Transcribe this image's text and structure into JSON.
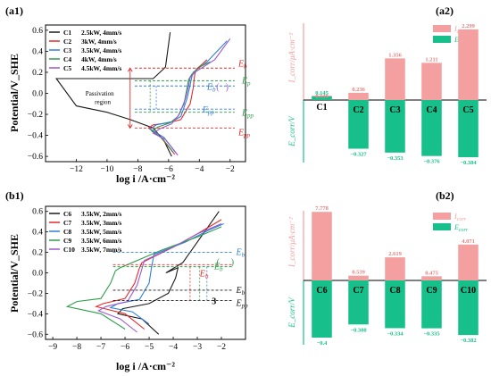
{
  "chart_data": [
    {
      "panel": "(a1)",
      "type": "line",
      "xlabel": "log i /A·cm⁻²",
      "ylabel": "Potential/V_SHE",
      "xlim": [
        -14,
        -1
      ],
      "ylim": [
        -0.65,
        0.65
      ],
      "xticks": [
        "−12",
        "−10",
        "−8",
        "−6",
        "−4",
        "−2"
      ],
      "xtick_values": [
        -12,
        -10,
        -8,
        -6,
        -4,
        -2
      ],
      "yticks": [
        "−0.6",
        "−0.4",
        "−0.2",
        "0.0",
        "0.2",
        "0.4",
        "0.6"
      ],
      "ytick_values": [
        -0.6,
        -0.4,
        -0.2,
        0.0,
        0.2,
        0.4,
        0.6
      ],
      "legend_position": "top-left",
      "series": [
        {
          "name": "C1",
          "detail": "2.5kW, 4mm/s",
          "color": "#1a1a1a",
          "x": [
            -5.8,
            -6.3,
            -7.0,
            -8.5,
            -10,
            -12,
            -13.3,
            -12,
            -9,
            -7,
            -6.2,
            -5.9
          ],
          "y": [
            -0.6,
            -0.45,
            -0.33,
            -0.25,
            -0.18,
            -0.12,
            0.14,
            0.14,
            0.14,
            0.14,
            0.25,
            0.58
          ]
        },
        {
          "name": "C2",
          "detail": "3kW, 4mm/s",
          "color": "#e32a2a",
          "x": [
            -5.6,
            -6.5,
            -7.3,
            -7.0,
            -6.0,
            -5.2,
            -4.6,
            -4.4,
            -4.3,
            -4.2,
            -3.8,
            -3.5
          ],
          "y": [
            -0.58,
            -0.42,
            -0.33,
            -0.3,
            -0.28,
            -0.25,
            -0.1,
            0.05,
            0.18,
            0.23,
            0.28,
            0.32
          ]
        },
        {
          "name": "C3",
          "detail": "3.5kW, 4mm/s",
          "color": "#2f7fd8",
          "x": [
            -5.5,
            -6.3,
            -7.2,
            -6.8,
            -5.8,
            -5.2,
            -4.8,
            -4.6,
            -4.5,
            -4.4,
            -3.5,
            -2.2
          ],
          "y": [
            -0.57,
            -0.42,
            -0.34,
            -0.3,
            -0.27,
            -0.22,
            -0.05,
            0.08,
            0.15,
            0.2,
            0.3,
            0.5
          ]
        },
        {
          "name": "C4",
          "detail": "4kW, 4mm/s",
          "color": "#2e9e4a",
          "x": [
            -5.7,
            -6.4,
            -7.1,
            -6.7,
            -5.9,
            -5.4,
            -5.0,
            -4.8,
            -4.7,
            -4.5,
            -4.0,
            -3.3
          ],
          "y": [
            -0.56,
            -0.43,
            -0.36,
            -0.32,
            -0.28,
            -0.22,
            -0.1,
            0.05,
            0.13,
            0.18,
            0.25,
            0.3
          ]
        },
        {
          "name": "C5",
          "detail": "4.5kW, 4mm/s",
          "color": "#9b59d0",
          "x": [
            -5.4,
            -6.2,
            -7.0,
            -6.6,
            -5.8,
            -5.3,
            -4.9,
            -4.7,
            -4.6,
            -4.3,
            -3.0,
            -2.0
          ],
          "y": [
            -0.59,
            -0.44,
            -0.38,
            -0.34,
            -0.29,
            -0.2,
            -0.05,
            0.07,
            0.15,
            0.2,
            0.32,
            0.52
          ]
        }
      ],
      "annotations": {
        "eb": "E",
        "eb_sub": "b",
        "epp": "E",
        "epp_sub": "pp",
        "paren_open": "(",
        "paren_close": ")",
        "passivation_line1": "Passivation",
        "passivation_line2": "region"
      },
      "marker_levels": {
        "eb": 0.24,
        "epp": -0.33,
        "ep_green": 0.12,
        "epp_green": -0.18,
        "eb_blue": 0.07,
        "epp_blue": -0.15
      }
    },
    {
      "panel": "(a2)",
      "type": "bar",
      "categories": [
        "C1",
        "C2",
        "C3",
        "C4",
        "C5"
      ],
      "series": [
        {
          "name": "I_corr",
          "unit": "μA·cm⁻²",
          "color": "#f4a0a0",
          "values": [
            0.139,
            0.236,
            1.356,
            1.211,
            2.299
          ],
          "labels": [
            "0.139",
            "0.236",
            "1.356",
            "1.211",
            "2.299"
          ]
        },
        {
          "name": "E_corr",
          "unit": "V",
          "color": "#17c08a",
          "values": [
            0.145,
            -0.327,
            -0.353,
            -0.376,
            -0.384
          ],
          "labels": [
            "0.145",
            "−0.327",
            "−0.353",
            "−0.376",
            "−0.384"
          ]
        }
      ],
      "y_upper_label": "I_corr/μA·cm⁻²",
      "y_lower_label": "E_corr/V",
      "legend_position": "top-right"
    },
    {
      "panel": "(b1)",
      "type": "line",
      "xlabel": "log i /A·cm⁻²",
      "ylabel": "Potential/V_SHE",
      "xlim": [
        -9.3,
        -1
      ],
      "ylim": [
        -0.65,
        0.65
      ],
      "xticks": [
        "−9",
        "−8",
        "−7",
        "−6",
        "−5",
        "−4",
        "−3",
        "−2"
      ],
      "xtick_values": [
        -9,
        -8,
        -7,
        -6,
        -5,
        -4,
        -3,
        -2
      ],
      "yticks": [
        "−0.6",
        "−0.4",
        "−0.2",
        "0.0",
        "0.2",
        "0.4",
        "0.6"
      ],
      "ytick_values": [
        -0.6,
        -0.4,
        -0.2,
        0.0,
        0.2,
        0.4,
        0.6
      ],
      "legend_position": "top-left",
      "series": [
        {
          "name": "C6",
          "detail": "3.5kW, 2mm/s",
          "color": "#1a1a1a",
          "x": [
            -4.6,
            -5.3,
            -6.3,
            -6.1,
            -5.0,
            -4.2,
            -3.9,
            -3.8,
            -4.3,
            -3.6,
            -3.0,
            -2.1
          ],
          "y": [
            -0.6,
            -0.45,
            -0.4,
            -0.35,
            -0.3,
            -0.2,
            -0.05,
            0.05,
            0.0,
            0.1,
            0.3,
            0.6
          ]
        },
        {
          "name": "C7",
          "detail": "3.5kW, 3mm/s",
          "color": "#e32a2a",
          "x": [
            -5.2,
            -6.0,
            -7.2,
            -6.9,
            -6.0,
            -5.6,
            -5.4,
            -5.3,
            -4.0,
            -3.0,
            -2.0
          ],
          "y": [
            -0.55,
            -0.4,
            -0.33,
            -0.3,
            -0.25,
            -0.1,
            0.05,
            0.1,
            0.25,
            0.38,
            0.52
          ]
        },
        {
          "name": "C8",
          "detail": "3.5kW, 5mm/s",
          "color": "#2f7fd8",
          "x": [
            -5.0,
            -5.7,
            -6.6,
            -6.3,
            -5.4,
            -5.0,
            -4.9,
            -4.8,
            -3.5,
            -2.5,
            -1.9
          ],
          "y": [
            -0.5,
            -0.38,
            -0.34,
            -0.3,
            -0.26,
            -0.1,
            0.05,
            0.18,
            0.3,
            0.42,
            0.48
          ]
        },
        {
          "name": "C9",
          "detail": "3.5kW, 6mm/s",
          "color": "#2e9e4a",
          "x": [
            -6.0,
            -7.0,
            -8.4,
            -8.0,
            -7.0,
            -6.6,
            -6.4,
            -6.2,
            -4.5,
            -3.0,
            -2.0
          ],
          "y": [
            -0.55,
            -0.4,
            -0.33,
            -0.28,
            -0.25,
            -0.1,
            0.02,
            0.05,
            0.22,
            0.35,
            0.45
          ]
        },
        {
          "name": "C10",
          "detail": "3.5kW, 7mm/s",
          "color": "#9b59d0",
          "x": [
            -5.5,
            -6.2,
            -7.1,
            -6.8,
            -5.9,
            -5.5,
            -5.3,
            -5.2,
            -4.0,
            -3.0,
            -2.0
          ],
          "y": [
            -0.58,
            -0.45,
            -0.37,
            -0.33,
            -0.28,
            -0.12,
            0.04,
            0.12,
            0.25,
            0.38,
            0.48
          ]
        }
      ],
      "annotations": {
        "eb": "E",
        "eb_sub": "b",
        "epp": "E",
        "epp_sub": "pp",
        "paren_open": "(",
        "paren_close": ")",
        "three": "3"
      },
      "marker_levels": {
        "eb_blue": 0.2,
        "eb_green": 0.06,
        "eb_red": 0.08,
        "eb_black": -0.17,
        "epp_black": -0.27
      }
    },
    {
      "panel": "(b2)",
      "type": "bar",
      "categories": [
        "C6",
        "C7",
        "C8",
        "C9",
        "C10"
      ],
      "series": [
        {
          "name": "I_corr",
          "unit": "μA·cm⁻²",
          "color": "#f4a0a0",
          "values": [
            7.778,
            0.539,
            2.619,
            0.475,
            4.071
          ],
          "labels": [
            "7.778",
            "0.539",
            "2.619",
            "0.475",
            "4.071"
          ]
        },
        {
          "name": "E_corr",
          "unit": "V",
          "color": "#17c08a",
          "values": [
            -0.4,
            -0.308,
            -0.334,
            -0.335,
            -0.382
          ],
          "labels": [
            "−0.4",
            "−0.308",
            "−0.334",
            "−0.335",
            "−0.382"
          ]
        }
      ],
      "y_upper_label": "I_corr/μA·cm⁻²",
      "y_lower_label": "E_corr/V",
      "legend_position": "top-right"
    }
  ]
}
